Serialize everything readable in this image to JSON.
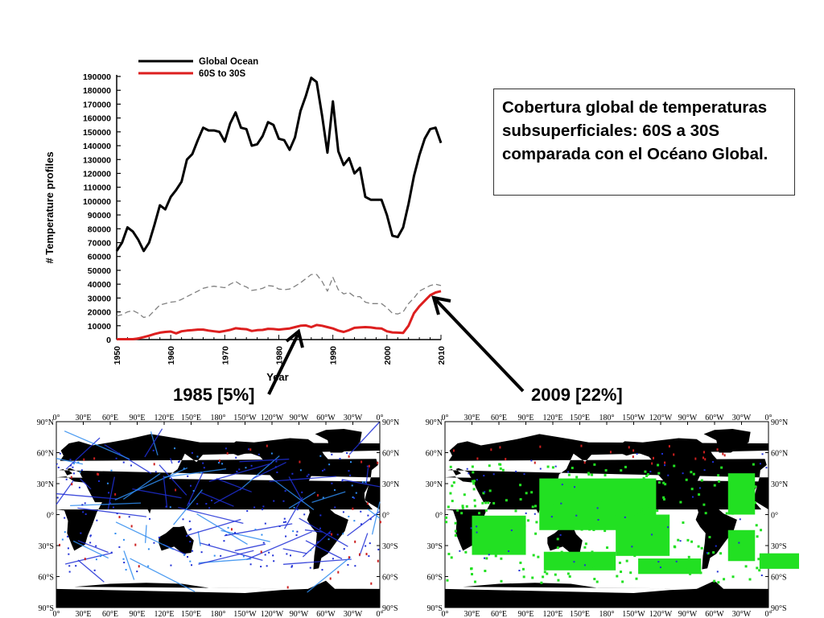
{
  "slide": {
    "caption": "Cobertura global de temperaturas subsuperficiales: 60S a 30S comparada con el Océano Global.",
    "annotation_left": "1985 [5%]",
    "annotation_right": "2009 [22%]"
  },
  "chart_data": {
    "type": "line",
    "xlabel": "Year",
    "ylabel": "# Temperature profiles",
    "xlim": [
      1950,
      2010
    ],
    "ylim": [
      0,
      190000
    ],
    "x_ticks": [
      "1950",
      "1960",
      "1970",
      "1980",
      "1990",
      "2000",
      "2010"
    ],
    "y_ticks": [
      "0",
      "10000",
      "20000",
      "30000",
      "40000",
      "50000",
      "60000",
      "70000",
      "80000",
      "90000",
      "100000",
      "110000",
      "120000",
      "130000",
      "140000",
      "150000",
      "160000",
      "170000",
      "180000",
      "190000"
    ],
    "legend_position": "top-left",
    "grid": false,
    "x": [
      1950,
      1951,
      1952,
      1953,
      1954,
      1955,
      1956,
      1957,
      1958,
      1959,
      1960,
      1961,
      1962,
      1963,
      1964,
      1965,
      1966,
      1967,
      1968,
      1969,
      1970,
      1971,
      1972,
      1973,
      1974,
      1975,
      1976,
      1977,
      1978,
      1979,
      1980,
      1981,
      1982,
      1983,
      1984,
      1985,
      1986,
      1987,
      1988,
      1989,
      1990,
      1991,
      1992,
      1993,
      1994,
      1995,
      1996,
      1997,
      1998,
      1999,
      2000,
      2001,
      2002,
      2003,
      2004,
      2005,
      2006,
      2007,
      2008,
      2009,
      2010
    ],
    "series": [
      {
        "name": "Global Ocean",
        "color": "#000000",
        "style": "solid",
        "values": [
          64000,
          70000,
          81000,
          78000,
          72000,
          64000,
          70000,
          83000,
          97000,
          94000,
          103000,
          108000,
          114000,
          130000,
          134000,
          144000,
          153000,
          151000,
          151000,
          150000,
          143000,
          156000,
          164000,
          153000,
          152000,
          140000,
          141000,
          147000,
          157000,
          155000,
          145000,
          144000,
          137000,
          146000,
          165000,
          176000,
          189000,
          186000,
          162000,
          135000,
          172000,
          136000,
          126000,
          131000,
          120000,
          124000,
          103000,
          101000,
          101000,
          101000,
          90000,
          75000,
          74000,
          81000,
          98000,
          118000,
          133000,
          145000,
          152000,
          153000,
          142000
        ]
      },
      {
        "name": "60S to 30S",
        "color": "#dd1f1f",
        "style": "solid",
        "values": [
          300,
          300,
          300,
          300,
          800,
          1800,
          2800,
          4000,
          5000,
          5500,
          5800,
          4500,
          6000,
          6500,
          6800,
          7200,
          7200,
          6500,
          6000,
          5500,
          6200,
          7000,
          8200,
          7800,
          7500,
          6200,
          6800,
          7000,
          7800,
          7600,
          7200,
          7600,
          8000,
          9000,
          10000,
          10200,
          9000,
          10500,
          10000,
          9000,
          8000,
          6500,
          5500,
          6800,
          8500,
          8800,
          9000,
          8800,
          8200,
          8000,
          6000,
          5200,
          5000,
          4800,
          10000,
          19000,
          24000,
          28000,
          32000,
          34000,
          35000
        ]
      },
      {
        "color": "#808080",
        "style": "dashed",
        "values": [
          17000,
          18000,
          20000,
          21000,
          19000,
          16000,
          17000,
          21000,
          25000,
          26000,
          27000,
          27500,
          29000,
          31000,
          33000,
          35000,
          37000,
          38000,
          38500,
          38000,
          37500,
          40000,
          42000,
          39500,
          38000,
          35500,
          36000,
          37000,
          39000,
          38500,
          36500,
          36000,
          36500,
          38500,
          41000,
          44000,
          47000,
          47000,
          42000,
          35000,
          45000,
          36000,
          33000,
          34000,
          31000,
          31000,
          27000,
          26000,
          26000,
          26000,
          23000,
          19000,
          18500,
          20000,
          26000,
          30000,
          35000,
          37000,
          39000,
          40000,
          39000
        ]
      }
    ]
  },
  "maps": {
    "lon_labels": [
      "0°",
      "30°E",
      "60°E",
      "90°E",
      "120°E",
      "150°E",
      "180°",
      "150°W",
      "120°W",
      "90°W",
      "60°W",
      "30°W",
      "0°"
    ],
    "lat_labels": [
      "90°N",
      "60°N",
      "30°N",
      "0°",
      "30°S",
      "60°S",
      "90°S"
    ],
    "left": {
      "title": "1985",
      "land_color": "#000000",
      "data_colors": [
        "#1f2fd6",
        "#2e8bef",
        "#cc1f1f"
      ]
    },
    "right": {
      "title": "2009",
      "land_color": "#000000",
      "data_colors": [
        "#22e022",
        "#1f2fd6",
        "#cc1f1f"
      ]
    }
  }
}
